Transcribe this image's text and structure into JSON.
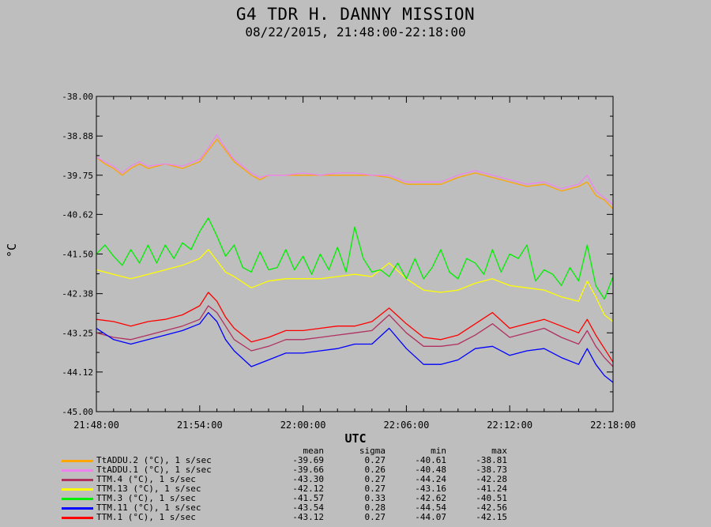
{
  "chart_data": {
    "type": "line",
    "title": "G4 TDR H. DANNY MISSION",
    "subtitle": "08/22/2015, 21:48:00-22:18:00",
    "xlabel": "UTC",
    "ylabel": "°C",
    "x_ticks": [
      "21:48:00",
      "21:54:00",
      "22:00:00",
      "22:06:00",
      "22:12:00",
      "22:18:00"
    ],
    "y_ticks": [
      "-38.00",
      "-38.88",
      "-39.75",
      "-40.62",
      "-41.50",
      "-42.38",
      "-43.25",
      "-44.12",
      "-45.00"
    ],
    "xlim_minutes": [
      0,
      30
    ],
    "ylim": [
      -45.0,
      -38.0
    ],
    "grid": false,
    "stats_headers": [
      "mean",
      "sigma",
      "min",
      "max"
    ],
    "series": [
      {
        "name": "TtADDU.2 (°C), 1 s/sec",
        "color": "#ffa500",
        "mean": "-39.69",
        "sigma": "0.27",
        "min": "-40.61",
        "max": "-38.81",
        "x": [
          0,
          0.5,
          1,
          1.5,
          2,
          2.5,
          3,
          4,
          5,
          6,
          6.5,
          7,
          7.5,
          8,
          8.5,
          9,
          9.5,
          10,
          11,
          12,
          13,
          14,
          15,
          16,
          17,
          18,
          19,
          20,
          21,
          22,
          23,
          24,
          25,
          26,
          27,
          28,
          28.5,
          29,
          29.5,
          30
        ],
        "y": [
          -39.35,
          -39.5,
          -39.6,
          -39.75,
          -39.6,
          -39.5,
          -39.6,
          -39.5,
          -39.6,
          -39.45,
          -39.2,
          -38.95,
          -39.2,
          -39.45,
          -39.6,
          -39.75,
          -39.85,
          -39.75,
          -39.75,
          -39.75,
          -39.75,
          -39.75,
          -39.75,
          -39.75,
          -39.8,
          -39.95,
          -39.95,
          -39.95,
          -39.8,
          -39.7,
          -39.8,
          -39.9,
          -40.0,
          -39.95,
          -40.1,
          -40.0,
          -39.9,
          -40.2,
          -40.3,
          -40.5
        ]
      },
      {
        "name": "TtADDU.1 (°C), 1 s/sec",
        "color": "#ee82ee",
        "mean": "-39.66",
        "sigma": "0.26",
        "min": "-40.48",
        "max": "-38.73",
        "x": [
          0,
          0.5,
          1,
          1.5,
          2,
          2.5,
          3,
          4,
          5,
          6,
          6.5,
          7,
          7.5,
          8,
          8.5,
          9,
          9.5,
          10,
          11,
          12,
          13,
          14,
          15,
          16,
          17,
          18,
          19,
          20,
          21,
          22,
          23,
          24,
          25,
          26,
          27,
          28,
          28.5,
          29,
          29.5,
          30
        ],
        "y": [
          -39.35,
          -39.45,
          -39.55,
          -39.7,
          -39.55,
          -39.45,
          -39.55,
          -39.5,
          -39.55,
          -39.4,
          -39.15,
          -38.85,
          -39.15,
          -39.4,
          -39.55,
          -39.7,
          -39.8,
          -39.75,
          -39.75,
          -39.7,
          -39.75,
          -39.7,
          -39.7,
          -39.75,
          -39.75,
          -39.9,
          -39.9,
          -39.9,
          -39.75,
          -39.65,
          -39.75,
          -39.85,
          -39.95,
          -39.9,
          -40.05,
          -39.95,
          -39.75,
          -40.1,
          -40.25,
          -40.4
        ]
      },
      {
        "name": "TTM.4 (°C), 1 s/sec",
        "color": "#b03060",
        "mean": "-43.30",
        "sigma": "0.27",
        "min": "-44.24",
        "max": "-42.28",
        "x": [
          0,
          1,
          2,
          3,
          4,
          5,
          6,
          6.5,
          7,
          7.5,
          8,
          9,
          10,
          11,
          12,
          13,
          14,
          15,
          16,
          17,
          18,
          19,
          20,
          21,
          22,
          23,
          24,
          25,
          26,
          27,
          28,
          28.5,
          29,
          29.5,
          30
        ],
        "y": [
          -43.25,
          -43.35,
          -43.4,
          -43.3,
          -43.2,
          -43.1,
          -42.95,
          -42.65,
          -42.8,
          -43.1,
          -43.4,
          -43.65,
          -43.55,
          -43.4,
          -43.4,
          -43.35,
          -43.3,
          -43.25,
          -43.2,
          -42.85,
          -43.25,
          -43.55,
          -43.55,
          -43.5,
          -43.3,
          -43.05,
          -43.35,
          -43.25,
          -43.15,
          -43.35,
          -43.5,
          -43.2,
          -43.55,
          -43.8,
          -44.0
        ]
      },
      {
        "name": "TTM.13 (°C), 1 s/sec",
        "color": "#ffff00",
        "mean": "-42.12",
        "sigma": "0.27",
        "min": "-43.16",
        "max": "-41.24",
        "x": [
          0,
          1,
          2,
          3,
          4,
          5,
          6,
          6.5,
          7,
          7.5,
          8,
          9,
          10,
          11,
          12,
          13,
          14,
          15,
          16,
          17,
          18,
          19,
          20,
          21,
          22,
          23,
          24,
          25,
          26,
          27,
          28,
          28.5,
          29,
          29.5,
          30
        ],
        "y": [
          -41.85,
          -41.95,
          -42.05,
          -41.95,
          -41.85,
          -41.75,
          -41.6,
          -41.4,
          -41.65,
          -41.9,
          -42.0,
          -42.25,
          -42.1,
          -42.05,
          -42.05,
          -42.05,
          -42.0,
          -41.95,
          -42.0,
          -41.7,
          -42.05,
          -42.3,
          -42.35,
          -42.3,
          -42.15,
          -42.05,
          -42.2,
          -42.25,
          -42.3,
          -42.45,
          -42.55,
          -42.1,
          -42.45,
          -42.85,
          -43.0
        ]
      },
      {
        "name": "TTM.3 (°C), 1 s/sec",
        "color": "#00ee00",
        "mean": "-41.57",
        "sigma": "0.33",
        "min": "-42.62",
        "max": "-40.51",
        "x": [
          0,
          0.5,
          1,
          1.5,
          2,
          2.5,
          3,
          3.5,
          4,
          4.5,
          5,
          5.5,
          6,
          6.5,
          7,
          7.5,
          8,
          8.5,
          9,
          9.5,
          10,
          10.5,
          11,
          11.5,
          12,
          12.5,
          13,
          13.5,
          14,
          14.5,
          15,
          15.5,
          16,
          16.5,
          17,
          17.5,
          18,
          18.5,
          19,
          19.5,
          20,
          20.5,
          21,
          21.5,
          22,
          22.5,
          23,
          23.5,
          24,
          24.5,
          25,
          25.5,
          26,
          26.5,
          27,
          27.5,
          28,
          28.5,
          29,
          29.5,
          30
        ],
        "y": [
          -41.5,
          -41.3,
          -41.55,
          -41.75,
          -41.4,
          -41.7,
          -41.3,
          -41.7,
          -41.3,
          -41.6,
          -41.25,
          -41.4,
          -41.0,
          -40.7,
          -41.1,
          -41.55,
          -41.3,
          -41.8,
          -41.9,
          -41.45,
          -41.85,
          -41.8,
          -41.4,
          -41.85,
          -41.55,
          -41.95,
          -41.5,
          -41.85,
          -41.35,
          -41.9,
          -40.9,
          -41.6,
          -41.9,
          -41.85,
          -42.0,
          -41.7,
          -42.05,
          -41.6,
          -42.05,
          -41.8,
          -41.4,
          -41.9,
          -42.05,
          -41.6,
          -41.7,
          -41.95,
          -41.4,
          -41.9,
          -41.5,
          -41.6,
          -41.3,
          -42.1,
          -41.85,
          -41.95,
          -42.2,
          -41.8,
          -42.1,
          -41.3,
          -42.2,
          -42.5,
          -42.0
        ]
      },
      {
        "name": "TTM.11 (°C), 1 s/sec",
        "color": "#0000ff",
        "mean": "-43.54",
        "sigma": "0.28",
        "min": "-44.54",
        "max": "-42.56",
        "x": [
          0,
          1,
          2,
          3,
          4,
          5,
          6,
          6.5,
          7,
          7.5,
          8,
          9,
          10,
          11,
          12,
          13,
          14,
          15,
          16,
          17,
          18,
          19,
          20,
          21,
          22,
          23,
          24,
          25,
          26,
          27,
          28,
          28.5,
          29,
          29.5,
          30
        ],
        "y": [
          -43.15,
          -43.4,
          -43.5,
          -43.4,
          -43.3,
          -43.2,
          -43.05,
          -42.8,
          -43.0,
          -43.4,
          -43.65,
          -44.0,
          -43.85,
          -43.7,
          -43.7,
          -43.65,
          -43.6,
          -43.5,
          -43.5,
          -43.15,
          -43.6,
          -43.95,
          -43.95,
          -43.85,
          -43.6,
          -43.55,
          -43.75,
          -43.65,
          -43.6,
          -43.8,
          -43.95,
          -43.6,
          -43.95,
          -44.2,
          -44.35
        ]
      },
      {
        "name": "TTM.1 (°C), 1 s/sec",
        "color": "#ff0000",
        "mean": "-43.12",
        "sigma": "0.27",
        "min": "-44.07",
        "max": "-42.15",
        "x": [
          0,
          1,
          2,
          3,
          4,
          5,
          6,
          6.5,
          7,
          7.5,
          8,
          9,
          10,
          11,
          12,
          13,
          14,
          15,
          16,
          17,
          18,
          19,
          20,
          21,
          22,
          23,
          24,
          25,
          26,
          27,
          28,
          28.5,
          29,
          29.5,
          30
        ],
        "y": [
          -42.95,
          -43.0,
          -43.1,
          -43.0,
          -42.95,
          -42.85,
          -42.65,
          -42.35,
          -42.55,
          -42.9,
          -43.15,
          -43.45,
          -43.35,
          -43.2,
          -43.2,
          -43.15,
          -43.1,
          -43.1,
          -43.0,
          -42.7,
          -43.05,
          -43.35,
          -43.4,
          -43.3,
          -43.05,
          -42.8,
          -43.15,
          -43.05,
          -42.95,
          -43.1,
          -43.25,
          -42.95,
          -43.3,
          -43.6,
          -43.9
        ]
      }
    ]
  }
}
